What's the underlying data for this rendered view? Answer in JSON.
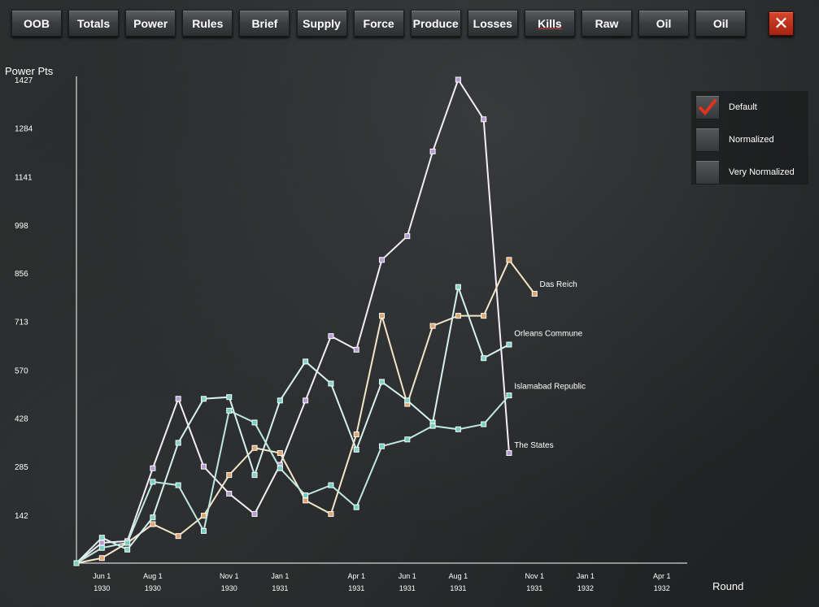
{
  "toolbar": {
    "tabs": [
      {
        "label": "OOB"
      },
      {
        "label": "Totals"
      },
      {
        "label": "Power"
      },
      {
        "label": "Rules"
      },
      {
        "label": "Brief"
      },
      {
        "label": "Supply"
      },
      {
        "label": "Force"
      },
      {
        "label": "Produce"
      },
      {
        "label": "Losses"
      },
      {
        "label": "Kills"
      },
      {
        "label": "Raw"
      },
      {
        "label": "Oil"
      },
      {
        "label": "Oil"
      }
    ],
    "active_tab": "Kills",
    "close_glyph": "✕"
  },
  "options": {
    "items": [
      {
        "label": "Default",
        "checked": true
      },
      {
        "label": "Normalized",
        "checked": false
      },
      {
        "label": "Very Normalized",
        "checked": false
      }
    ],
    "check_color": "#e0331c"
  },
  "chart_data": {
    "type": "line",
    "ylabel": "Power Pts",
    "xlabel": "Round",
    "ylim": [
      0,
      1427
    ],
    "yticks": [
      "1427",
      "1284",
      "1141",
      "998",
      "856",
      "713",
      "570",
      "428",
      "285",
      "142"
    ],
    "ytick_values": [
      1427,
      1284,
      1141,
      998,
      856,
      713,
      570,
      428,
      285,
      142
    ],
    "xticks": [
      {
        "round": 1,
        "line1": "Jun 1",
        "line2": "1930"
      },
      {
        "round": 3,
        "line1": "Aug 1",
        "line2": "1930"
      },
      {
        "round": 6,
        "line1": "Nov 1",
        "line2": "1930"
      },
      {
        "round": 8,
        "line1": "Jan 1",
        "line2": "1931"
      },
      {
        "round": 11,
        "line1": "Apr 1",
        "line2": "1931"
      },
      {
        "round": 13,
        "line1": "Jun 1",
        "line2": "1931"
      },
      {
        "round": 15,
        "line1": "Aug 1",
        "line2": "1931"
      },
      {
        "round": 18,
        "line1": "Nov 1",
        "line2": "1931"
      },
      {
        "round": 20,
        "line1": "Jan 1",
        "line2": "1932"
      },
      {
        "round": 23,
        "line1": "Apr 1",
        "line2": "1932"
      }
    ],
    "xlim": [
      0,
      24
    ],
    "series": [
      {
        "name": "The States",
        "color": "#f4eef8",
        "marker": "#b79ad6",
        "x": [
          0,
          1,
          2,
          3,
          4,
          5,
          6,
          7,
          8,
          9,
          10,
          11,
          12,
          13,
          14,
          15,
          16,
          17,
          18
        ],
        "y": [
          0,
          60,
          65,
          280,
          485,
          285,
          205,
          145,
          290,
          480,
          670,
          630,
          895,
          965,
          1215,
          1427,
          1310,
          325,
          null
        ]
      },
      {
        "name": "Das Reich",
        "color": "#f4e6c8",
        "marker": "#e2a468",
        "x": [
          0,
          1,
          2,
          3,
          4,
          5,
          6,
          7,
          8,
          9,
          10,
          11,
          12,
          13,
          14,
          15,
          16,
          17,
          18
        ],
        "y": [
          0,
          15,
          60,
          115,
          80,
          140,
          260,
          340,
          325,
          185,
          145,
          380,
          730,
          470,
          700,
          730,
          730,
          895,
          795
        ]
      },
      {
        "name": "Orleans Commune",
        "color": "#d8f2ee",
        "marker": "#7ed6c8",
        "x": [
          0,
          1,
          2,
          3,
          4,
          5,
          6,
          7,
          8,
          9,
          10,
          11,
          12,
          13,
          14,
          15,
          16,
          17,
          18
        ],
        "y": [
          0,
          75,
          40,
          135,
          355,
          485,
          490,
          260,
          480,
          595,
          530,
          335,
          535,
          480,
          415,
          815,
          605,
          645,
          null
        ]
      },
      {
        "name": "Islamabad Republic",
        "color": "#bfe8e0",
        "marker": "#6fd0c2",
        "x": [
          0,
          1,
          2,
          3,
          4,
          5,
          6,
          7,
          8,
          9,
          10,
          11,
          12,
          13,
          14,
          15,
          16,
          17,
          18
        ],
        "y": [
          0,
          45,
          60,
          240,
          230,
          95,
          450,
          415,
          280,
          200,
          230,
          165,
          345,
          365,
          405,
          395,
          410,
          495,
          null
        ]
      }
    ],
    "series_labels": [
      {
        "name": "Das Reich",
        "anchor_round": 18.2,
        "anchor_value": 815
      },
      {
        "name": "Orleans Commune",
        "anchor_round": 17.2,
        "anchor_value": 670
      },
      {
        "name": "Islamabad Republic",
        "anchor_round": 17.2,
        "anchor_value": 515
      },
      {
        "name": "The States",
        "anchor_round": 17.2,
        "anchor_value": 340
      }
    ],
    "grid": false,
    "legend": "inline at line ends"
  }
}
